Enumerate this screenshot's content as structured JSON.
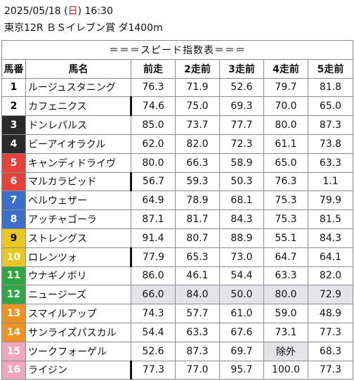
{
  "header": {
    "date_prefix": "2025/05/18 (",
    "day_of_week": "日",
    "date_suffix": ") 16:30",
    "race": "東京12R ＢＳイレブン賞 ダ1400m"
  },
  "table": {
    "title": "＝＝＝スピード指数表＝＝＝",
    "columns": [
      "馬番",
      "馬名",
      "前走",
      "2走前",
      "3走前",
      "4走前",
      "5走前"
    ],
    "rows": [
      {
        "num": "1",
        "name": "ルージュスタニング",
        "values": [
          "76.3",
          "71.9",
          "52.6",
          "79.7",
          "81.8"
        ],
        "bg": "#ffffff",
        "fg": "#000000"
      },
      {
        "num": "2",
        "name": "カフェニクス",
        "values": [
          "74.6",
          "75.0",
          "69.3",
          "70.0",
          "65.0"
        ],
        "bg": "#ffffff",
        "fg": "#000000"
      },
      {
        "num": "3",
        "name": "ドンレパルス",
        "values": [
          "85.0",
          "73.7",
          "77.7",
          "80.0",
          "87.3"
        ],
        "bg": "#2a2a2a",
        "fg": "#ffffff"
      },
      {
        "num": "4",
        "name": "ビーアイオラクル",
        "values": [
          "62.0",
          "82.0",
          "72.3",
          "61.1",
          "73.8"
        ],
        "bg": "#2a2a2a",
        "fg": "#ffffff"
      },
      {
        "num": "5",
        "name": "キャンディドライヴ",
        "values": [
          "80.0",
          "66.3",
          "58.9",
          "65.0",
          "63.3"
        ],
        "bg": "#e8403a",
        "fg": "#ffffff"
      },
      {
        "num": "6",
        "name": "マルカラピッド",
        "values": [
          "56.7",
          "59.3",
          "50.3",
          "76.3",
          "1.1"
        ],
        "bg": "#e8403a",
        "fg": "#ffffff"
      },
      {
        "num": "7",
        "name": "ベルウェザー",
        "values": [
          "64.9",
          "78.9",
          "68.1",
          "75.3",
          "79.9"
        ],
        "bg": "#3a6ec8",
        "fg": "#ffffff"
      },
      {
        "num": "8",
        "name": "アッチャゴーラ",
        "values": [
          "87.1",
          "81.7",
          "84.3",
          "75.3",
          "81.5"
        ],
        "bg": "#3a6ec8",
        "fg": "#ffffff"
      },
      {
        "num": "9",
        "name": "ストレングス",
        "values": [
          "91.4",
          "80.7",
          "88.9",
          "55.1",
          "84.3"
        ],
        "bg": "#e8c81c",
        "fg": "#000000"
      },
      {
        "num": "10",
        "name": "ロレンツォ",
        "values": [
          "77.9",
          "65.3",
          "73.0",
          "64.7",
          "64.1"
        ],
        "bg": "#e8c81c",
        "fg": "#ffffff"
      },
      {
        "num": "11",
        "name": "ウナギノボリ",
        "values": [
          "86.0",
          "46.1",
          "54.4",
          "63.3",
          "82.0"
        ],
        "bg": "#2fa843",
        "fg": "#ffffff"
      },
      {
        "num": "12",
        "name": "ニュージーズ",
        "values": [
          "66.0",
          "84.0",
          "50.0",
          "80.0",
          "72.9"
        ],
        "bg": "#2fa843",
        "fg": "#ffffff"
      },
      {
        "num": "13",
        "name": "スマイルアップ",
        "values": [
          "74.3",
          "57.7",
          "61.0",
          "59.0",
          "48.9"
        ],
        "bg": "#ee9320",
        "fg": "#ffffff"
      },
      {
        "num": "14",
        "name": "サンライズパスカル",
        "values": [
          "54.4",
          "63.3",
          "67.6",
          "73.1",
          "77.3"
        ],
        "bg": "#ee9320",
        "fg": "#ffffff"
      },
      {
        "num": "15",
        "name": "ツークフォーゲル",
        "values": [
          "52.6",
          "87.3",
          "69.7",
          "除外",
          "68.3"
        ],
        "bg": "#f2a6be",
        "fg": "#ffffff"
      },
      {
        "num": "16",
        "name": "ライジン",
        "values": [
          "77.3",
          "77.0",
          "95.7",
          "100.0",
          "77.3"
        ],
        "bg": "#f2a6be",
        "fg": "#ffffff"
      }
    ]
  }
}
